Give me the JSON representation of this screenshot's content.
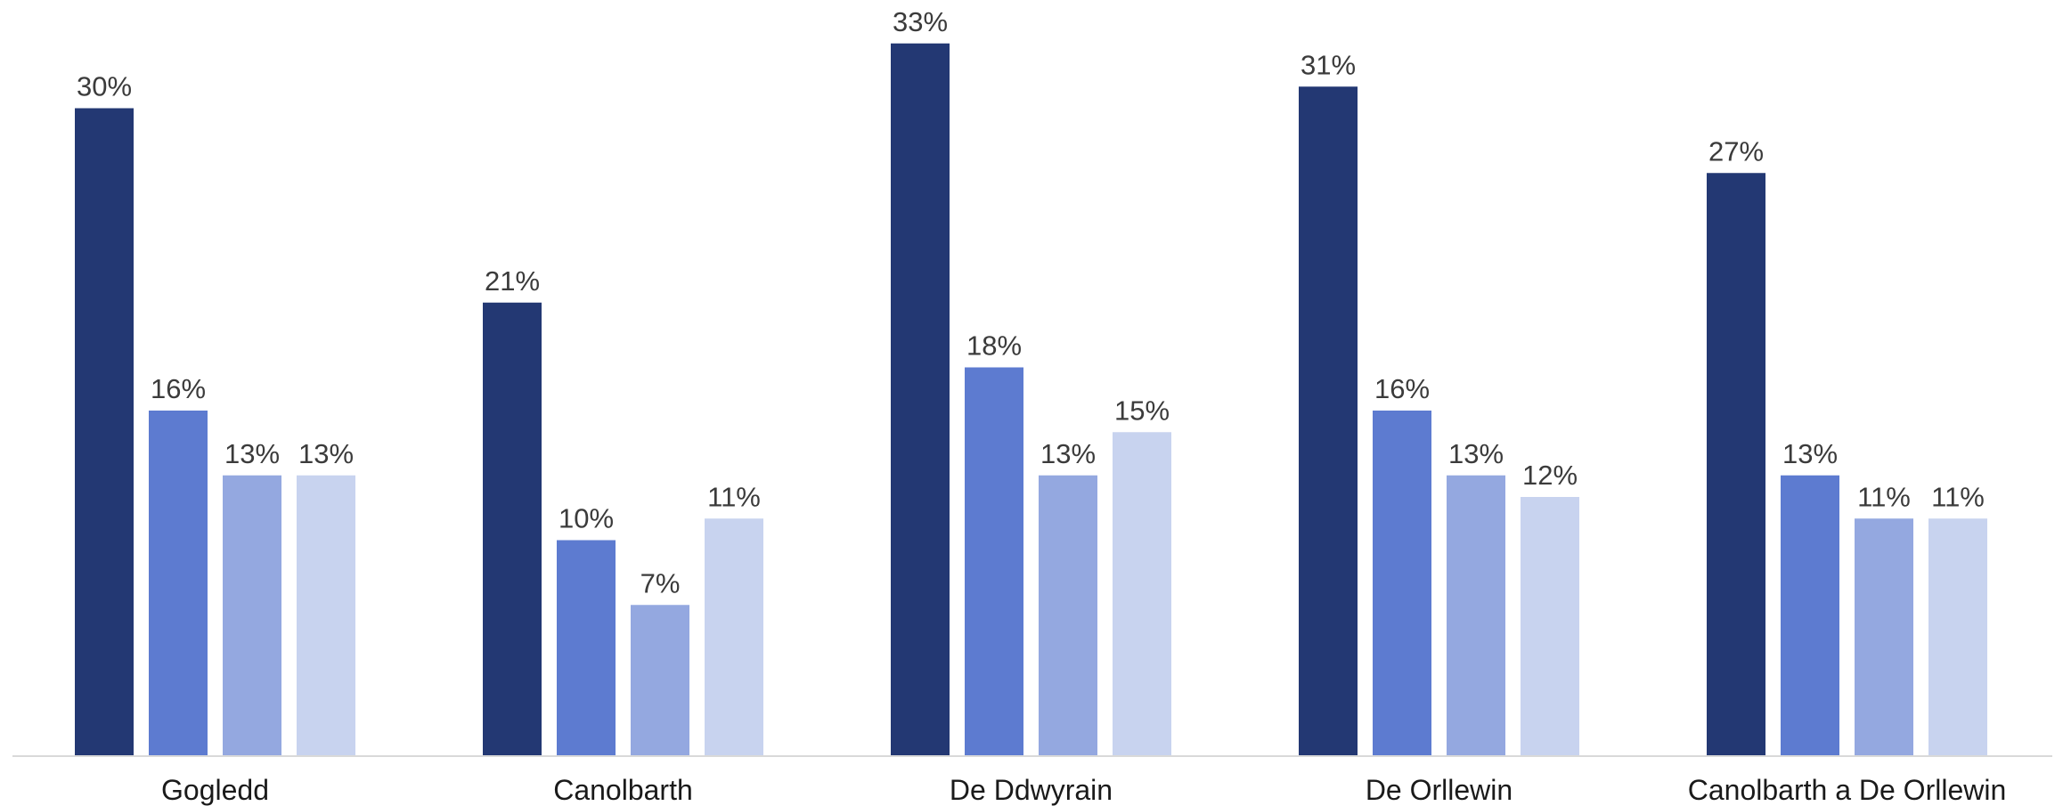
{
  "chart_data": {
    "type": "bar",
    "title": "",
    "xlabel": "",
    "ylabel": "",
    "ylim": [
      0,
      34
    ],
    "value_format": "{v}%",
    "categories": [
      "Gogledd",
      "Canolbarth",
      "De Ddwyrain",
      "De Orllewin",
      "Canolbarth a De Orllewin"
    ],
    "series": [
      {
        "color": "#233873",
        "values": [
          30,
          21,
          33,
          31,
          27
        ]
      },
      {
        "color": "#5d7bd0",
        "values": [
          16,
          10,
          18,
          16,
          13
        ]
      },
      {
        "color": "#94a8e0",
        "values": [
          13,
          7,
          13,
          13,
          11
        ]
      },
      {
        "color": "#c8d3ef",
        "values": [
          13,
          11,
          15,
          12,
          11
        ]
      }
    ],
    "grid": false,
    "legend": "none",
    "baseline_color": "#d9d9d9"
  }
}
